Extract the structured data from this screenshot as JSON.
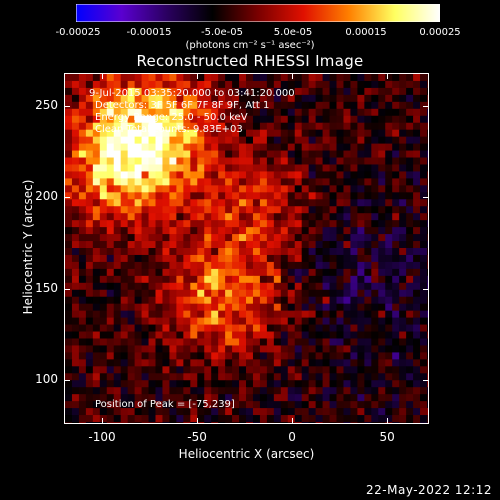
{
  "colorbar": {
    "ticks": [
      "-0.00025",
      "-0.00015",
      "-5.0e-05",
      "5.0e-05",
      "0.00015",
      "0.00025"
    ],
    "units": "(photons cm⁻² s⁻¹ asec⁻²)",
    "colormap": [
      "#0000ff",
      "#5a00d0",
      "#2a0060",
      "#000000",
      "#7a0000",
      "#e01000",
      "#ff8000",
      "#ffff60",
      "#ffffff"
    ]
  },
  "footer": {
    "date": "22-May-2022 12:12"
  },
  "chart_data": {
    "type": "heatmap",
    "title": "Reconstructed RHESSI Image",
    "xlabel": "Heliocentric X (arcsec)",
    "ylabel": "Heliocentric Y (arcsec)",
    "xlim": [
      -120,
      72
    ],
    "ylim": [
      76,
      268
    ],
    "zlim": [
      -0.00025,
      0.00025
    ],
    "x_ticks": [
      -100,
      -50,
      0,
      50
    ],
    "y_ticks": [
      100,
      150,
      200,
      250
    ],
    "annotations": [
      "9-Jul-2015 03:35:20.000 to 03:41:20.000",
      "Detectors: 3F 5F 6F 7F 8F 9F, Att 1",
      "Energy Range: 25.0 - 50.0 keV",
      "Clean      Total counts: 9.83E+03"
    ],
    "peak_label": "Position of Peak = [-75,239]",
    "bright_sources": [
      {
        "x": -75,
        "y": 239,
        "intensity": 0.00025
      },
      {
        "x": -90,
        "y": 215,
        "intensity": 0.0002
      },
      {
        "x": -35,
        "y": 145,
        "intensity": 0.00018
      },
      {
        "x": -20,
        "y": 195,
        "intensity": 0.00012
      }
    ]
  }
}
